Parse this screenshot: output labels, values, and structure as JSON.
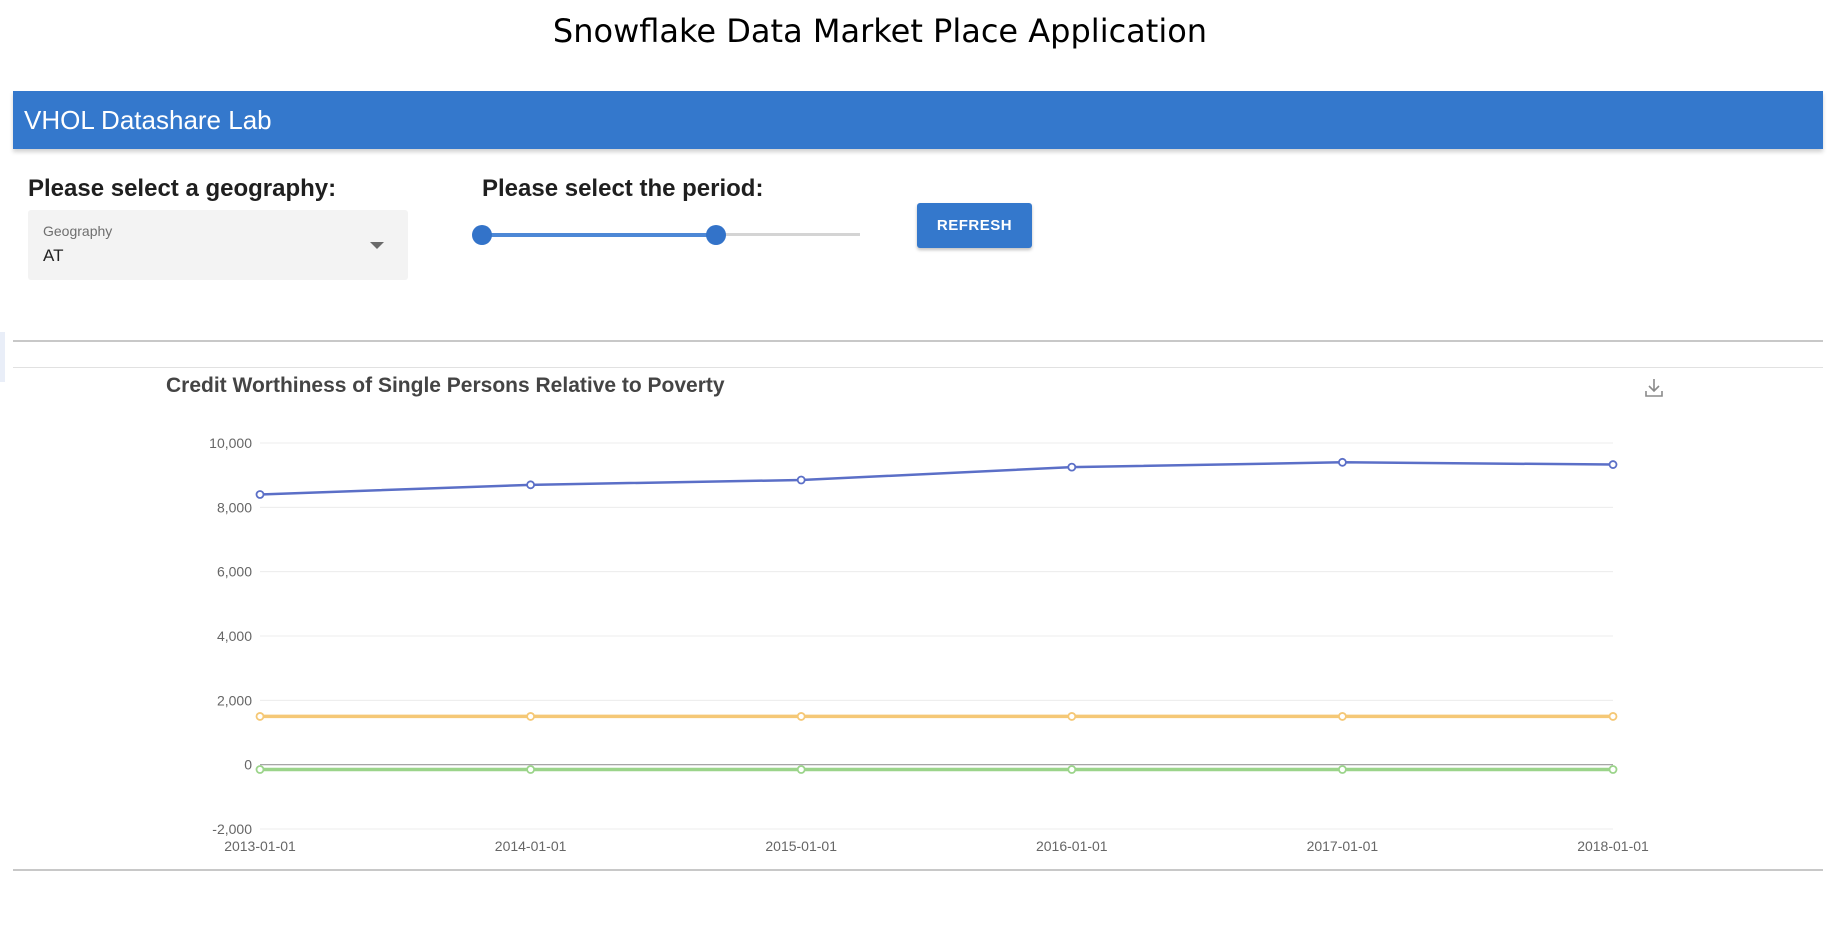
{
  "page": {
    "title": "Snowflake Data Market Place Application"
  },
  "app_bar": {
    "title": "VHOL Datashare Lab"
  },
  "controls": {
    "geography_label": "Please select a geography:",
    "geography_select": {
      "floating_label": "Geography",
      "value": "AT"
    },
    "period_label": "Please select the period:",
    "period_slider": {
      "low_fraction": 0.0,
      "high_fraction": 0.62
    },
    "refresh_label": "REFRESH"
  },
  "icons": {
    "dropdown": "chevron-down-icon",
    "download": "download-icon"
  },
  "colors": {
    "accent": "#3478cc",
    "series_blue": "#5b6fc7",
    "series_orange": "#f5c876",
    "series_green": "#9bd48a"
  },
  "chart_data": {
    "type": "line",
    "title": "Credit Worthiness of Single Persons Relative to Poverty",
    "xlabel": "",
    "ylabel": "",
    "x": [
      "2013-01-01",
      "2014-01-01",
      "2015-01-01",
      "2016-01-01",
      "2017-01-01",
      "2018-01-01"
    ],
    "yticks": [
      "-2,000",
      "0",
      "2,000",
      "4,000",
      "6,000",
      "8,000",
      "10,000"
    ],
    "ylim": [
      -2000,
      10000
    ],
    "grid": true,
    "legend": "none",
    "series": [
      {
        "color": "#5b6fc7",
        "values": [
          8400,
          8700,
          8850,
          9250,
          9400,
          9330
        ]
      },
      {
        "color": "#f5c876",
        "values": [
          1500,
          1500,
          1500,
          1500,
          1500,
          1500
        ]
      },
      {
        "color": "#9bd48a",
        "values": [
          -150,
          -150,
          -150,
          -150,
          -150,
          -150
        ]
      }
    ]
  }
}
